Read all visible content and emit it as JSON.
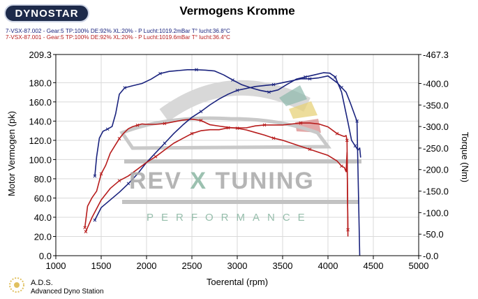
{
  "header": {
    "logo_text": "DYNOSTAR",
    "title": "Vermogens Kromme"
  },
  "runs": [
    {
      "label": "7-VSX-87.002 - Gear:5 TP:100% DE:92% XL:20%   - P Lucht:1019.2mBar T° lucht:36.8°C",
      "color": "#1a237e"
    },
    {
      "label": "7-VSX-87.001 - Gear:5 TP:100% DE:92% XL:20%   - P Lucht:1019.6mBar T° lucht:36.4°C",
      "color": "#b71c1c"
    }
  ],
  "watermark": {
    "main_left": "REV",
    "main_x": "X",
    "main_right": "TUNING",
    "sub": "PERFORMANCE"
  },
  "footer": {
    "ads_short": "A.D.S.",
    "ads_long": "Advanced Dyno Station"
  },
  "chart_data": {
    "type": "line",
    "title": "Vermogens Kromme",
    "xlabel": "Toerental (rpm)",
    "ylabel": "Motor Vermogen (pk)",
    "y2label": "Torque (Nm)",
    "xlim": [
      1000,
      5000
    ],
    "ylim": [
      0.0,
      209.3
    ],
    "y2lim": [
      0.0,
      467.3
    ],
    "x_ticks": [
      1000,
      1500,
      2000,
      2500,
      3000,
      3500,
      4000,
      4500,
      5000
    ],
    "y_ticks": [
      "0.0",
      "20.0",
      "40.0",
      "60.0",
      "80.0",
      "100.0",
      "120.0",
      "140.0",
      "160.0",
      "180.0",
      "209.3"
    ],
    "y_tick_values": [
      0,
      20,
      40,
      60,
      80,
      100,
      120,
      140,
      160,
      180,
      209.3
    ],
    "y2_ticks": [
      "-0.0",
      "-50.0",
      "-100.0",
      "-150.0",
      "-200.0",
      "-250.0",
      "-300.0",
      "-350.0",
      "-400.0",
      "-467.3"
    ],
    "y2_tick_values": [
      0,
      50,
      100,
      150,
      200,
      250,
      300,
      350,
      400,
      467.3
    ],
    "grid": true,
    "series": [
      {
        "name": "7-VSX-87.002",
        "kind": "torque",
        "axis": "right",
        "color": "#1a237e",
        "x": [
          1430,
          1450,
          1480,
          1520,
          1570,
          1620,
          1660,
          1700,
          1760,
          1850,
          1950,
          2050,
          2150,
          2250,
          2350,
          2450,
          2550,
          2650,
          2750,
          2850,
          2950,
          3050,
          3150,
          3250,
          3350,
          3450,
          3550,
          3650,
          3750,
          3850,
          3950,
          4020,
          4080,
          4150,
          4220,
          4260,
          4300,
          4330,
          4350,
          4360
        ],
        "y": [
          185,
          230,
          273,
          289,
          294,
          300,
          330,
          375,
          390,
          395,
          400,
          410,
          423,
          428,
          430,
          432,
          432,
          431,
          429,
          420,
          408,
          397,
          390,
          384,
          380,
          385,
          398,
          410,
          415,
          420,
          425,
          424,
          415,
          380,
          310,
          268,
          255,
          245,
          250,
          228
        ]
      },
      {
        "name": "7-VSX-87.001",
        "kind": "torque",
        "axis": "right",
        "color": "#b71c1c",
        "x": [
          1320,
          1350,
          1400,
          1450,
          1500,
          1550,
          1600,
          1650,
          1700,
          1750,
          1800,
          1850,
          1900,
          1950,
          2000,
          2100,
          2200,
          2300,
          2400,
          2500,
          2600,
          2700,
          2800,
          2900,
          3000,
          3100,
          3200,
          3300,
          3400,
          3500,
          3600,
          3700,
          3800,
          3900,
          4000,
          4100,
          4150,
          4180,
          4200,
          4210,
          4220
        ],
        "y": [
          65,
          115,
          135,
          150,
          190,
          210,
          238,
          255,
          272,
          285,
          295,
          300,
          303,
          306,
          305,
          305,
          307,
          311,
          315,
          317,
          314,
          304,
          301,
          298,
          296,
          292,
          286,
          280,
          273,
          268,
          261,
          254,
          247,
          240,
          233,
          220,
          208,
          205,
          195,
          240,
          60
        ]
      },
      {
        "name": "7-VSX-87.002",
        "kind": "power",
        "axis": "left",
        "color": "#1a237e",
        "x": [
          1430,
          1500,
          1600,
          1700,
          1800,
          1900,
          2000,
          2100,
          2200,
          2300,
          2400,
          2500,
          2600,
          2700,
          2800,
          2900,
          3000,
          3100,
          3200,
          3300,
          3400,
          3500,
          3600,
          3700,
          3800,
          3900,
          4000,
          4100,
          4150,
          4200,
          4250,
          4300,
          4320,
          4350
        ],
        "y": [
          37,
          50,
          58,
          66,
          75,
          85,
          97,
          107,
          117,
          127,
          136,
          144,
          150,
          157,
          163,
          168,
          172,
          174,
          176,
          177,
          178,
          180,
          182,
          184,
          184,
          185,
          187,
          180,
          175,
          170,
          158,
          145,
          140,
          0
        ]
      },
      {
        "name": "7-VSX-87.001",
        "kind": "power",
        "axis": "left",
        "color": "#b71c1c",
        "x": [
          1330,
          1400,
          1500,
          1600,
          1700,
          1800,
          1900,
          2000,
          2100,
          2200,
          2300,
          2400,
          2500,
          2600,
          2700,
          2800,
          2900,
          3000,
          3100,
          3200,
          3300,
          3400,
          3500,
          3600,
          3700,
          3800,
          3900,
          4000,
          4100,
          4150,
          4180,
          4200,
          4210,
          4220
        ],
        "y": [
          25,
          40,
          58,
          70,
          78,
          83,
          90,
          97,
          103,
          110,
          117,
          122,
          127,
          130,
          131,
          131,
          133,
          133,
          133,
          135,
          136,
          136,
          136,
          137,
          138,
          138,
          137,
          134,
          127,
          125,
          124,
          125,
          120,
          20
        ]
      }
    ]
  }
}
